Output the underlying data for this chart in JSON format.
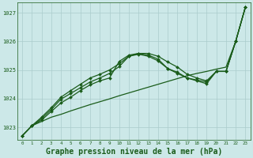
{
  "bg_color": "#cce8e8",
  "grid_color": "#aacccc",
  "line_color": "#1a5c1a",
  "marker_color": "#1a5c1a",
  "xlabel": "Graphe pression niveau de la mer (hPa)",
  "xlabel_fontsize": 7,
  "ylabel_ticks": [
    1023,
    1024,
    1025,
    1026,
    1027
  ],
  "xlim": [
    -0.5,
    23.5
  ],
  "ylim": [
    1022.55,
    1027.35
  ],
  "x_ticks": [
    0,
    1,
    2,
    3,
    4,
    5,
    6,
    7,
    8,
    9,
    10,
    11,
    12,
    13,
    14,
    15,
    16,
    17,
    18,
    19,
    20,
    21,
    22,
    23
  ],
  "series_plain": [
    1022.7,
    1023.05,
    1023.2,
    1023.35,
    1023.45,
    1023.57,
    1023.68,
    1023.79,
    1023.89,
    1023.99,
    1024.1,
    1024.2,
    1024.3,
    1024.4,
    1024.5,
    1024.6,
    1024.7,
    1024.8,
    1024.88,
    1024.95,
    1025.03,
    1025.1,
    1026.0,
    1027.2
  ],
  "series_markers": [
    [
      1022.7,
      1023.05,
      1023.25,
      1023.55,
      1023.85,
      1024.05,
      1024.28,
      1024.48,
      1024.62,
      1024.72,
      1025.3,
      1025.52,
      1025.58,
      1025.52,
      1025.38,
      1025.05,
      1024.92,
      1024.72,
      1024.62,
      1024.52,
      1024.95,
      1024.95,
      1026.0,
      1027.2
    ],
    [
      1022.7,
      1023.05,
      1023.3,
      1023.62,
      1023.98,
      1024.18,
      1024.38,
      1024.58,
      1024.72,
      1024.88,
      1025.12,
      1025.48,
      1025.58,
      1025.58,
      1025.48,
      1025.28,
      1025.1,
      1024.85,
      1024.72,
      1024.62,
      1024.95,
      1024.95,
      1026.0,
      1027.2
    ],
    [
      1022.7,
      1023.05,
      1023.35,
      1023.68,
      1024.05,
      1024.28,
      1024.5,
      1024.72,
      1024.85,
      1025.0,
      1025.22,
      1025.48,
      1025.55,
      1025.48,
      1025.32,
      1025.05,
      1024.88,
      1024.72,
      1024.65,
      1024.58,
      1024.95,
      1024.95,
      1026.0,
      1027.2
    ]
  ]
}
